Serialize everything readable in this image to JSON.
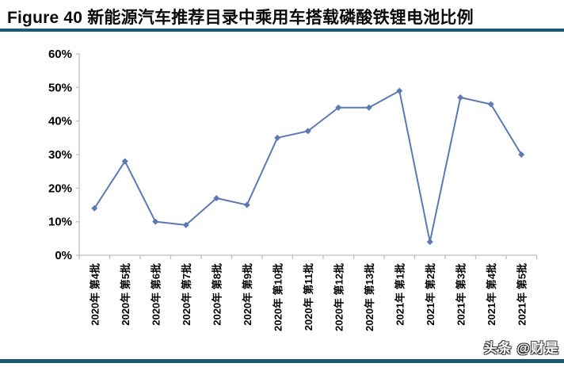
{
  "page": {
    "title": "Figure 40 新能源汽车推荐目录中乘用车搭载磷酸铁锂电池比例",
    "watermark": "头条 @财是",
    "accent_color": "#1c5872"
  },
  "chart_data": {
    "type": "line",
    "title": "新能源汽车推荐目录中乘用车搭载磷酸铁锂电池比例",
    "categories": [
      "2020年 第4批",
      "2020年 第5批",
      "2020年 第6批",
      "2020年 第7批",
      "2020年 第8批",
      "2020年 第9批",
      "2020年 第10批",
      "2020年 第11批",
      "2020年 第12批",
      "2020年 第13批",
      "2021年 第1批",
      "2021年 第2批",
      "2021年 第3批",
      "2021年 第4批",
      "2021年 第5批"
    ],
    "values": [
      14,
      28,
      10,
      9,
      17,
      15,
      35,
      37,
      44,
      44,
      49,
      4,
      47,
      45,
      30
    ],
    "unit": "%",
    "xlabel": "",
    "ylabel": "",
    "ylim": [
      0,
      60
    ],
    "ytick_step": 10,
    "ytick_labels": [
      "0%",
      "10%",
      "20%",
      "30%",
      "40%",
      "50%",
      "60%"
    ],
    "grid": false,
    "legend_position": "none",
    "line_color": "#5b79b4",
    "marker": "diamond"
  }
}
